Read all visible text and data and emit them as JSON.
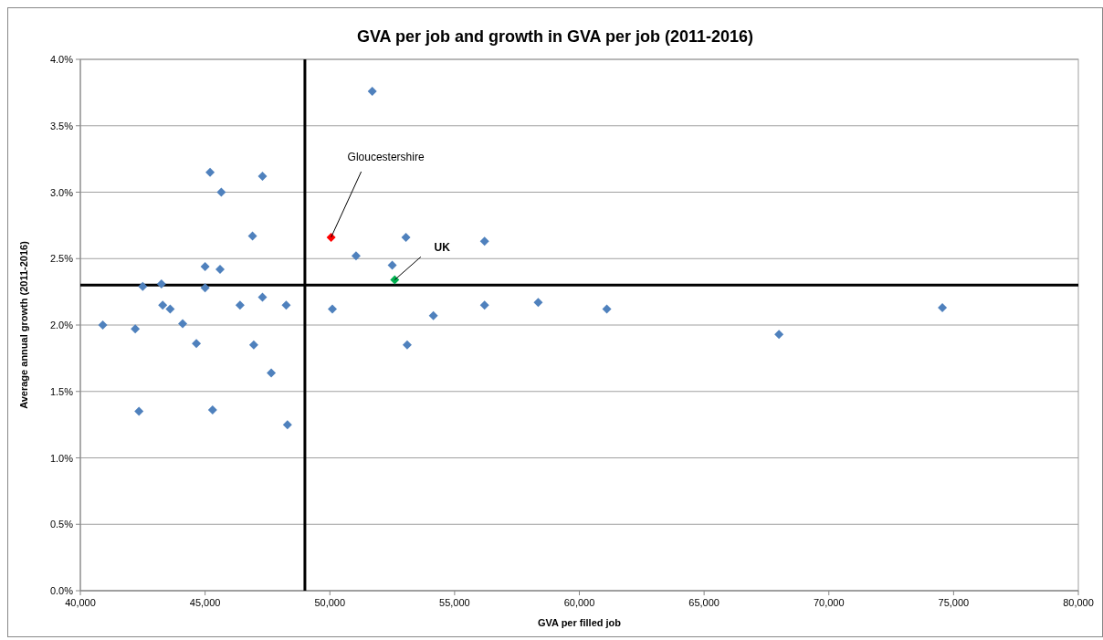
{
  "chart_data": {
    "type": "scatter",
    "title": "GVA per job and growth in GVA per job (2011-2016)",
    "xlabel": "GVA per filled job",
    "ylabel": "Average annual growth (2011-2016)",
    "xlim": [
      40000,
      80000
    ],
    "xticks": [
      {
        "value": 40000,
        "label": "40,000"
      },
      {
        "value": 45000,
        "label": "45,000"
      },
      {
        "value": 50000,
        "label": "50,000"
      },
      {
        "value": 55000,
        "label": "55,000"
      },
      {
        "value": 60000,
        "label": "60,000"
      },
      {
        "value": 65000,
        "label": "65,000"
      },
      {
        "value": 70000,
        "label": "70,000"
      },
      {
        "value": 75000,
        "label": "75,000"
      },
      {
        "value": 80000,
        "label": "80,000"
      }
    ],
    "ylim": [
      0,
      4
    ],
    "yticks": [
      {
        "value": 0,
        "label": "0.0%"
      },
      {
        "value": 0.5,
        "label": "0.5%"
      },
      {
        "value": 1,
        "label": "1.0%"
      },
      {
        "value": 1.5,
        "label": "1.5%"
      },
      {
        "value": 2,
        "label": "2.0%"
      },
      {
        "value": 2.5,
        "label": "2.5%"
      },
      {
        "value": 3,
        "label": "3.0%"
      },
      {
        "value": 3.5,
        "label": "3.5%"
      },
      {
        "value": 4,
        "label": "4.0%"
      }
    ],
    "grid": "y",
    "marker": "diamond",
    "ref_lines": [
      {
        "axis": "x",
        "value": 49000,
        "color": "#000000"
      },
      {
        "axis": "y",
        "value": 2.3,
        "color": "#000000"
      }
    ],
    "series": [
      {
        "color": "#4f81bd",
        "x": [
          45200,
          47300,
          45650,
          46900,
          45000,
          45600,
          42500,
          43250,
          45000,
          43300,
          43600,
          46400,
          47300,
          48250,
          40900,
          42200,
          44100,
          44650,
          46950,
          47650,
          42350,
          45300,
          48300,
          51700,
          53050,
          56200,
          51050,
          52500,
          50100,
          54150,
          56200,
          58350,
          53100,
          61100,
          68000,
          74550
        ],
        "values": [
          3.15,
          3.12,
          3.0,
          2.67,
          2.44,
          2.42,
          2.29,
          2.31,
          2.28,
          2.15,
          2.12,
          2.15,
          2.21,
          2.15,
          2.0,
          1.97,
          2.01,
          1.86,
          1.85,
          1.64,
          1.35,
          1.36,
          1.25,
          3.76,
          2.66,
          2.63,
          2.52,
          2.45,
          2.12,
          2.07,
          2.15,
          2.17,
          1.85,
          2.12,
          1.93,
          2.13
        ]
      },
      {
        "name": "Gloucestershire",
        "color": "#ff0000",
        "x": [
          50050
        ],
        "values": [
          2.66
        ]
      },
      {
        "name": "UK",
        "color": "#00b050",
        "x": [
          52600
        ],
        "values": [
          2.34
        ]
      }
    ]
  }
}
